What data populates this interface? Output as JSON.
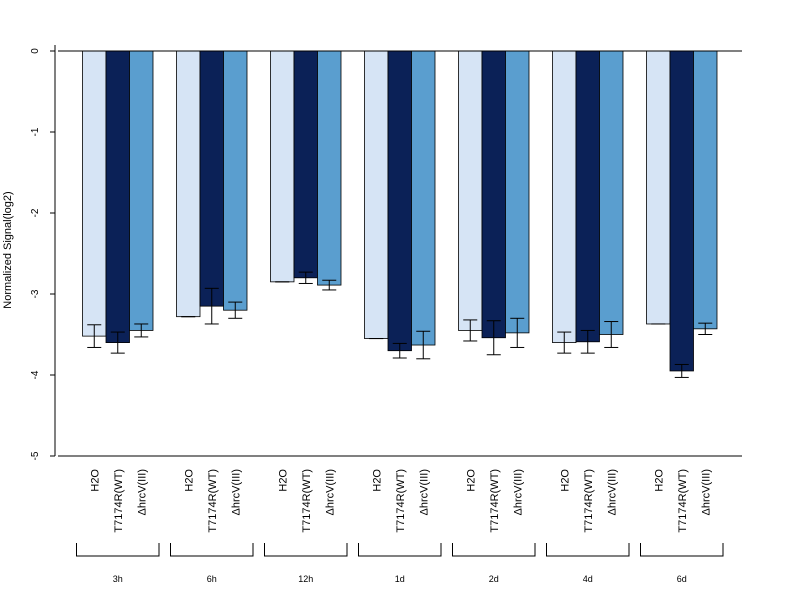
{
  "chart_data": {
    "type": "bar",
    "title": "",
    "ylabel": "Normalized Signal(log2)",
    "xlabel": "",
    "ylim": [
      -5,
      0
    ],
    "yticks": [
      "0",
      "-1",
      "-2",
      "-3",
      "-4",
      "-5"
    ],
    "grid": false,
    "legend": "none",
    "categories": [
      "H2O",
      "T7174R(WT)",
      "ΔhrcV(III)"
    ],
    "colors": [
      "#d6e4f5",
      "#0b2157",
      "#5a9ecf"
    ],
    "groups": [
      {
        "label": "3h",
        "values": [
          -3.52,
          -3.6,
          -3.45
        ],
        "errors": [
          0.14,
          0.13,
          0.08
        ]
      },
      {
        "label": "6h",
        "values": [
          -3.28,
          -3.15,
          -3.2
        ],
        "errors": [
          0.0,
          0.22,
          0.1
        ]
      },
      {
        "label": "12h",
        "values": [
          -2.85,
          -2.8,
          -2.89
        ],
        "errors": [
          0.0,
          0.07,
          0.06
        ]
      },
      {
        "label": "1d",
        "values": [
          -3.55,
          -3.7,
          -3.63
        ],
        "errors": [
          0.0,
          0.09,
          0.17
        ]
      },
      {
        "label": "2d",
        "values": [
          -3.45,
          -3.54,
          -3.48
        ],
        "errors": [
          0.13,
          0.21,
          0.18
        ]
      },
      {
        "label": "4d",
        "values": [
          -3.6,
          -3.59,
          -3.5
        ],
        "errors": [
          0.13,
          0.14,
          0.16
        ]
      },
      {
        "label": "6d",
        "values": [
          -3.37,
          -3.95,
          -3.43
        ],
        "errors": [
          0.0,
          0.08,
          0.07
        ]
      }
    ]
  }
}
